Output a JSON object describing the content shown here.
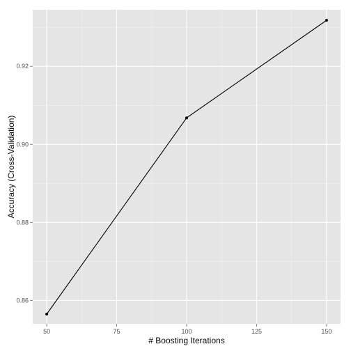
{
  "chart_data": {
    "type": "line",
    "title": "",
    "xlabel": "# Boosting Iterations",
    "ylabel": "Accuracy (Cross-Validation)",
    "x": [
      50,
      100,
      150
    ],
    "series": [
      {
        "values": [
          0.8565,
          0.9068,
          0.9318
        ]
      }
    ],
    "xlim": [
      45,
      155
    ],
    "ylim": [
      0.854,
      0.9345
    ],
    "xticks": [
      50,
      75,
      100,
      125,
      150
    ],
    "xtick_labels": [
      "50",
      "75",
      "100",
      "125",
      "150"
    ],
    "yticks": [
      0.86,
      0.88,
      0.9,
      0.92
    ],
    "ytick_labels": [
      "0.86",
      "0.88",
      "0.90",
      "0.92"
    ],
    "grid": true,
    "legend": "none",
    "colors": {
      "panel_background": "#e5e5e5",
      "grid_major": "#ffffff",
      "grid_minor": "#f2f2f2",
      "line": "#000000",
      "point": "#000000",
      "tick_mark": "#7f7f7f",
      "tick_label": "#4d4d4d"
    }
  }
}
